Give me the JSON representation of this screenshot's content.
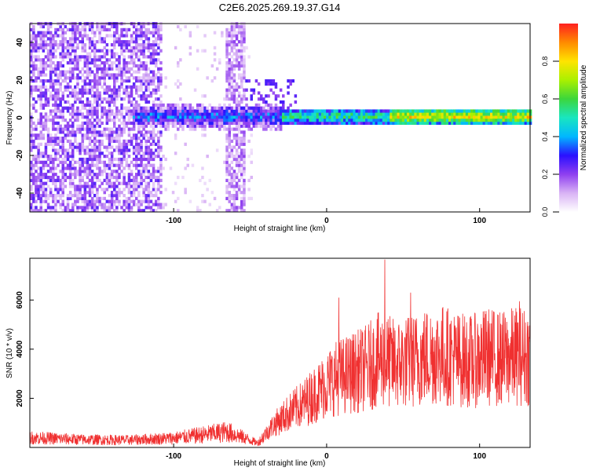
{
  "title": "C2E6.2025.269.19.37.G14",
  "chart_data": [
    {
      "type": "heatmap",
      "xlabel": "Height of straight line (km)",
      "ylabel": "Frequency (Hz)",
      "xlim": [
        -194,
        133
      ],
      "ylim": [
        -50,
        50
      ],
      "xticks": [
        -100,
        0,
        100
      ],
      "yticks": [
        -40,
        -20,
        0,
        20,
        40
      ],
      "colorbar": {
        "label": "Normalized spectral amplitude",
        "range": [
          0,
          1
        ],
        "ticks": [
          "0.0",
          "0.2",
          "0.4",
          "0.6",
          "0.8"
        ],
        "colormap": [
          "#ffffff",
          "#d9b3f5",
          "#8f3ff0",
          "#2a10ff",
          "#00b7ff",
          "#19e6c0",
          "#3cd63c",
          "#aaf000",
          "#ffe400",
          "#ff8a00",
          "#ff2020"
        ]
      },
      "features": {
        "noise_region_x": [
          -194,
          -108
        ],
        "interference_band_x": [
          -67,
          -54
        ],
        "signal_start_x": -128,
        "signal_frequency_hz": 0,
        "signal_bandwidth_hz": [
          -5,
          5
        ]
      }
    },
    {
      "type": "line",
      "xlabel": "Height of straight line (km)",
      "ylabel": "SNR (10 * v/v)",
      "xlim": [
        -194,
        133
      ],
      "ylim": [
        0,
        7700
      ],
      "xticks": [
        -100,
        0,
        100
      ],
      "yticks": [
        2000,
        4000,
        6000
      ],
      "color": "#f03030",
      "series": [
        {
          "x": [
            -194,
            -160,
            -130,
            -100,
            -80,
            -65,
            -55,
            -45,
            -35,
            -25,
            -15,
            -5,
            5,
            15,
            25,
            35,
            45,
            55,
            65,
            75,
            85,
            95,
            105,
            115,
            125,
            133
          ],
          "y": [
            400,
            320,
            300,
            380,
            520,
            640,
            420,
            180,
            900,
            1400,
            1800,
            2300,
            2800,
            3000,
            3200,
            3600,
            3400,
            3500,
            3700,
            3800,
            3600,
            3500,
            3700,
            3600,
            3750,
            3700
          ]
        }
      ],
      "peaks": [
        {
          "x": 38,
          "y": 7650
        },
        {
          "x": 55,
          "y": 6300
        },
        {
          "x": 8,
          "y": 6100
        },
        {
          "x": 126,
          "y": 5950
        }
      ]
    }
  ]
}
